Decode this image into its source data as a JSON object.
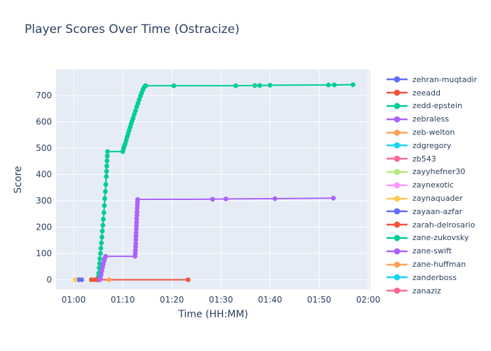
{
  "title": "Player Scores Over Time (Ostracize)",
  "chart_data": {
    "type": "line",
    "title": "Player Scores Over Time (Ostracize)",
    "xlabel": "Time (HH:MM)",
    "ylabel": "Score",
    "x_unit": "minutes_since_00:00",
    "mode": "lines+markers",
    "grid": true,
    "legend_position": "right",
    "x_ticks": [
      {
        "t": 60,
        "label": "01:00"
      },
      {
        "t": 70,
        "label": "01:10"
      },
      {
        "t": 80,
        "label": "01:20"
      },
      {
        "t": 90,
        "label": "01:30"
      },
      {
        "t": 100,
        "label": "01:40"
      },
      {
        "t": 110,
        "label": "01:50"
      },
      {
        "t": 120,
        "label": "02:00"
      }
    ],
    "y_ticks": [
      0,
      100,
      200,
      300,
      400,
      500,
      600,
      700
    ],
    "x_range": [
      56.4,
      120.4
    ],
    "y_range": [
      -36,
      800
    ],
    "colors": {
      "paper_bg": "#ffffff",
      "plot_bg": "#e5ecf6",
      "grid": "#ffffff",
      "text": "#2a3f5f"
    },
    "legend_entries": [
      {
        "label": "zehran-muqtadir",
        "color": "#636efa"
      },
      {
        "label": "zeeadd",
        "color": "#ef553b"
      },
      {
        "label": "zedd-epstein",
        "color": "#00cc96"
      },
      {
        "label": "zebraless",
        "color": "#ab63fa"
      },
      {
        "label": "zeb-welton",
        "color": "#ffa15a"
      },
      {
        "label": "zdgregory",
        "color": "#19d3f3"
      },
      {
        "label": "zb543",
        "color": "#ff6692"
      },
      {
        "label": "zayyhefner30",
        "color": "#b6e880"
      },
      {
        "label": "zaynexotic",
        "color": "#ff97ff"
      },
      {
        "label": "zaynaquader",
        "color": "#fecb52"
      },
      {
        "label": "zayaan-azfar",
        "color": "#636efa"
      },
      {
        "label": "zarah-delrosario",
        "color": "#ef553b"
      },
      {
        "label": "zane-zukovsky",
        "color": "#00cc96"
      },
      {
        "label": "zane-swift",
        "color": "#ab63fa"
      },
      {
        "label": "zane-huffman",
        "color": "#ffa15a"
      },
      {
        "label": "zanderboss",
        "color": "#19d3f3"
      },
      {
        "label": "zanaziz",
        "color": "#ff6692"
      }
    ],
    "series": [
      {
        "name": "zehran-muqtadir",
        "color": "#636efa",
        "points": [
          [
            61.05,
            0
          ],
          [
            61.65,
            0
          ]
        ]
      },
      {
        "name": "zeeadd",
        "color": "#ef553b",
        "points": [
          [
            63.6,
            0
          ],
          [
            64.2,
            0
          ]
        ]
      },
      {
        "name": "zedd-epstein",
        "color": "#00cc96",
        "points": [
          [
            64.9,
            0
          ],
          [
            65.0,
            10
          ],
          [
            65.1,
            25
          ],
          [
            65.2,
            45
          ],
          [
            65.3,
            62
          ],
          [
            65.35,
            80
          ],
          [
            65.45,
            100
          ],
          [
            65.55,
            120
          ],
          [
            65.65,
            140
          ],
          [
            65.75,
            162
          ],
          [
            65.85,
            185
          ],
          [
            65.95,
            207
          ],
          [
            66.05,
            230
          ],
          [
            66.15,
            255
          ],
          [
            66.25,
            282
          ],
          [
            66.35,
            308
          ],
          [
            66.45,
            335
          ],
          [
            66.55,
            362
          ],
          [
            66.65,
            392
          ],
          [
            66.7,
            412
          ],
          [
            66.75,
            432
          ],
          [
            66.8,
            452
          ],
          [
            66.85,
            470
          ],
          [
            66.9,
            487
          ],
          [
            70.0,
            487
          ],
          [
            70.15,
            498
          ],
          [
            70.3,
            507
          ],
          [
            70.5,
            517
          ],
          [
            70.7,
            530
          ],
          [
            70.9,
            543
          ],
          [
            71.1,
            555
          ],
          [
            71.3,
            567
          ],
          [
            71.5,
            580
          ],
          [
            71.7,
            592
          ],
          [
            71.9,
            603
          ],
          [
            72.1,
            614
          ],
          [
            72.35,
            628
          ],
          [
            72.6,
            642
          ],
          [
            72.85,
            657
          ],
          [
            73.1,
            670
          ],
          [
            73.35,
            684
          ],
          [
            73.6,
            698
          ],
          [
            73.85,
            710
          ],
          [
            74.1,
            722
          ],
          [
            74.35,
            731
          ],
          [
            74.6,
            737
          ],
          [
            74.7,
            737
          ],
          [
            80.4,
            737
          ],
          [
            93.0,
            737
          ],
          [
            96.9,
            738
          ],
          [
            97.9,
            738
          ],
          [
            100.0,
            739
          ],
          [
            111.9,
            740
          ],
          [
            113.1,
            740
          ],
          [
            116.9,
            741
          ]
        ]
      },
      {
        "name": "zaynaquader",
        "color": "#fecb52",
        "points": [
          [
            60.3,
            0
          ]
        ]
      },
      {
        "name": "zarah-delrosario",
        "color": "#ef553b",
        "points": [
          [
            64.7,
            0
          ],
          [
            65.15,
            0
          ],
          [
            83.3,
            0
          ]
        ]
      },
      {
        "name": "zeb-welton",
        "color": "#ffa15a",
        "points": [
          [
            67.2,
            0
          ]
        ]
      },
      {
        "name": "zane-swift",
        "color": "#ab63fa",
        "points": [
          [
            65.3,
            0
          ],
          [
            65.45,
            8
          ],
          [
            65.6,
            20
          ],
          [
            65.75,
            34
          ],
          [
            65.9,
            48
          ],
          [
            66.05,
            60
          ],
          [
            66.2,
            72
          ],
          [
            66.35,
            82
          ],
          [
            66.5,
            89
          ],
          [
            72.5,
            89
          ],
          [
            72.55,
            100
          ],
          [
            72.58,
            112
          ],
          [
            72.61,
            125
          ],
          [
            72.64,
            138
          ],
          [
            72.67,
            152
          ],
          [
            72.7,
            165
          ],
          [
            72.73,
            178
          ],
          [
            72.76,
            192
          ],
          [
            72.79,
            205
          ],
          [
            72.82,
            218
          ],
          [
            72.85,
            232
          ],
          [
            72.88,
            245
          ],
          [
            72.91,
            258
          ],
          [
            72.94,
            272
          ],
          [
            72.97,
            285
          ],
          [
            73.0,
            296
          ],
          [
            73.05,
            305
          ],
          [
            88.3,
            306
          ],
          [
            91.0,
            307
          ],
          [
            101.0,
            308
          ],
          [
            112.9,
            310
          ]
        ]
      }
    ]
  }
}
